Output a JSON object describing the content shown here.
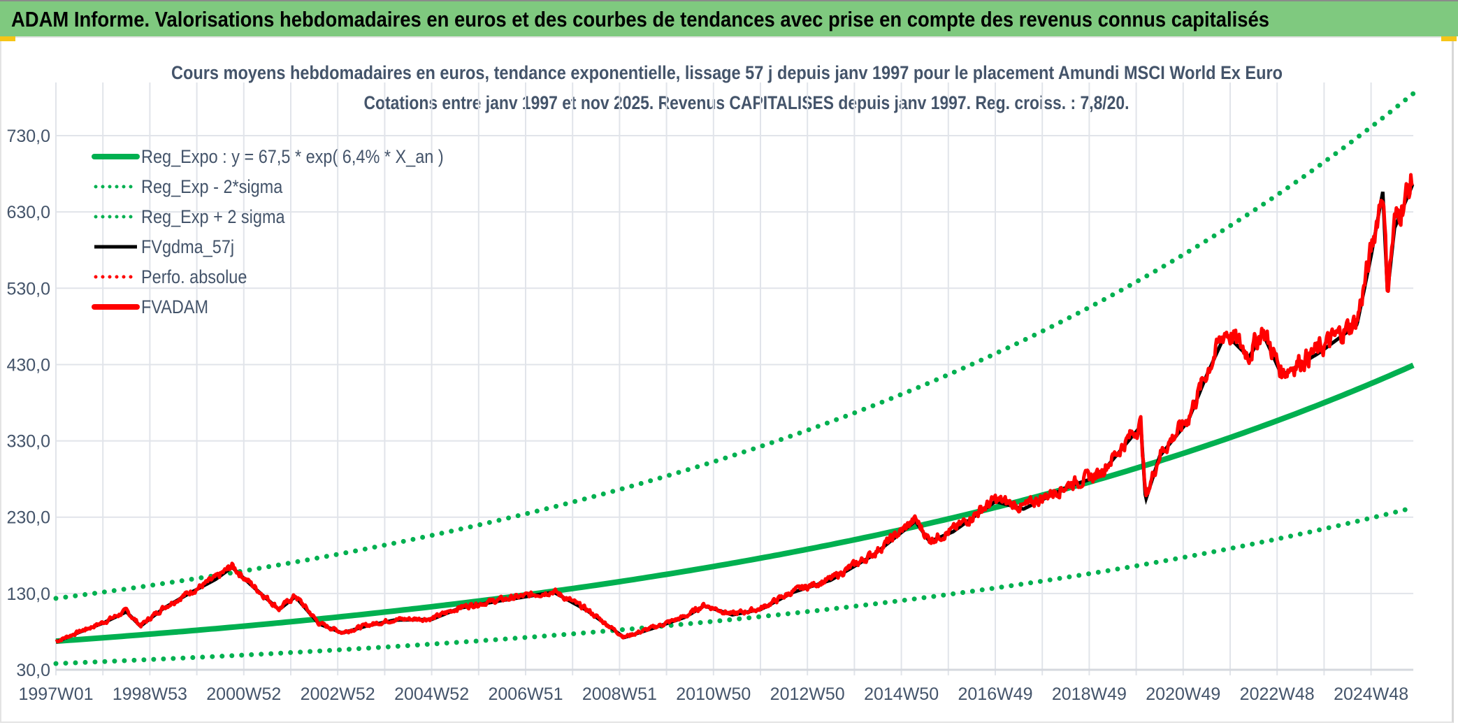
{
  "header": {
    "title": "ADAM Informe. Valorisations hebdomadaires en euros et des courbes de tendances avec prise en compte des revenus connus capitalisés"
  },
  "colors": {
    "green": "#00b050",
    "red": "#ff0000",
    "black": "#000000",
    "title_text": "#44546a",
    "title_bar": "#7fc97f"
  },
  "chart_data": {
    "type": "line",
    "title": "Cours moyens hebdomadaires en euros, tendance exponentielle, lissage 57 j depuis janv 1997 pour le placement Amundi MSCI World Ex Euro",
    "subtitle": "Cotations entre janv 1997 et nov 2025. Revenus CAPITALISES depuis janv 1997. Reg. croiss. : 7,8/20.",
    "xlabel": "",
    "ylabel": "",
    "ylim": [
      30,
      800
    ],
    "xlim_years": [
      1997.0,
      2025.9
    ],
    "grid": true,
    "y_ticks": [
      "30,0",
      "130,0",
      "230,0",
      "330,0",
      "430,0",
      "530,0",
      "630,0",
      "730,0"
    ],
    "y_tick_values": [
      30,
      130,
      230,
      330,
      430,
      530,
      630,
      730
    ],
    "x_ticks": [
      "1997W01",
      "1998W53",
      "2000W52",
      "2002W52",
      "2004W52",
      "2006W51",
      "2008W51",
      "2010W50",
      "2012W50",
      "2014W50",
      "2016W49",
      "2018W49",
      "2020W49",
      "2022W48",
      "2024W48"
    ],
    "x_tick_years": [
      1997,
      1999,
      2001,
      2003,
      2005,
      2007,
      2009,
      2011,
      2013,
      2015,
      2017,
      2019,
      2021,
      2023,
      2025
    ],
    "legend_position": "top-left",
    "legend": [
      {
        "label": "Reg_Expo : y = 67,5 * exp( 6,4% *  X_an )",
        "color": "#00b050",
        "style": "solid-thick"
      },
      {
        "label": "Reg_Exp - 2*sigma",
        "color": "#00b050",
        "style": "dotted"
      },
      {
        "label": "Reg_Exp + 2 sigma",
        "color": "#00b050",
        "style": "dotted"
      },
      {
        "label": "FVgdma_57j",
        "color": "#000000",
        "style": "solid"
      },
      {
        "label": "Perfo. absolue",
        "color": "#ff0000",
        "style": "dotted"
      },
      {
        "label": "FVADAM",
        "color": "#ff0000",
        "style": "solid-thick"
      }
    ],
    "regression": {
      "a": 67.5,
      "rate": 0.064,
      "minus_2sigma_factor": 0.565,
      "plus_2sigma_factor": 1.83
    },
    "series": [
      {
        "name": "FVADAM",
        "x_years": [
          1997.0,
          1997.5,
          1998.0,
          1998.5,
          1998.8,
          1999.3,
          1999.8,
          2000.4,
          2000.75,
          2001.2,
          2001.75,
          2002.1,
          2002.6,
          2003.1,
          2003.6,
          2004.2,
          2005.0,
          2005.6,
          2006.4,
          2007.0,
          2007.6,
          2008.3,
          2009.1,
          2009.7,
          2010.4,
          2010.8,
          2011.4,
          2012.0,
          2012.7,
          2013.5,
          2014.4,
          2015.3,
          2015.6,
          2016.1,
          2017.0,
          2017.6,
          2018.6,
          2019.2,
          2020.1,
          2020.2,
          2020.5,
          2021.1,
          2021.5,
          2021.9,
          2022.4,
          2022.7,
          2023.1,
          2023.9,
          2024.7,
          2025.0,
          2025.25,
          2025.35,
          2025.5,
          2025.9
        ],
        "values": [
          67,
          80,
          92,
          107,
          88,
          112,
          130,
          150,
          166,
          140,
          110,
          127,
          91,
          79,
          88,
          96,
          97,
          112,
          121,
          127,
          133,
          109,
          73,
          85,
          100,
          115,
          103,
          110,
          133,
          149,
          182,
          227,
          200,
          213,
          253,
          243,
          274,
          286,
          353,
          255,
          313,
          359,
          420,
          475,
          444,
          475,
          420,
          450,
          487,
          578,
          663,
          529,
          615,
          675
        ]
      },
      {
        "name": "FVgdma_57j",
        "derived_from": "FVADAM"
      }
    ]
  }
}
